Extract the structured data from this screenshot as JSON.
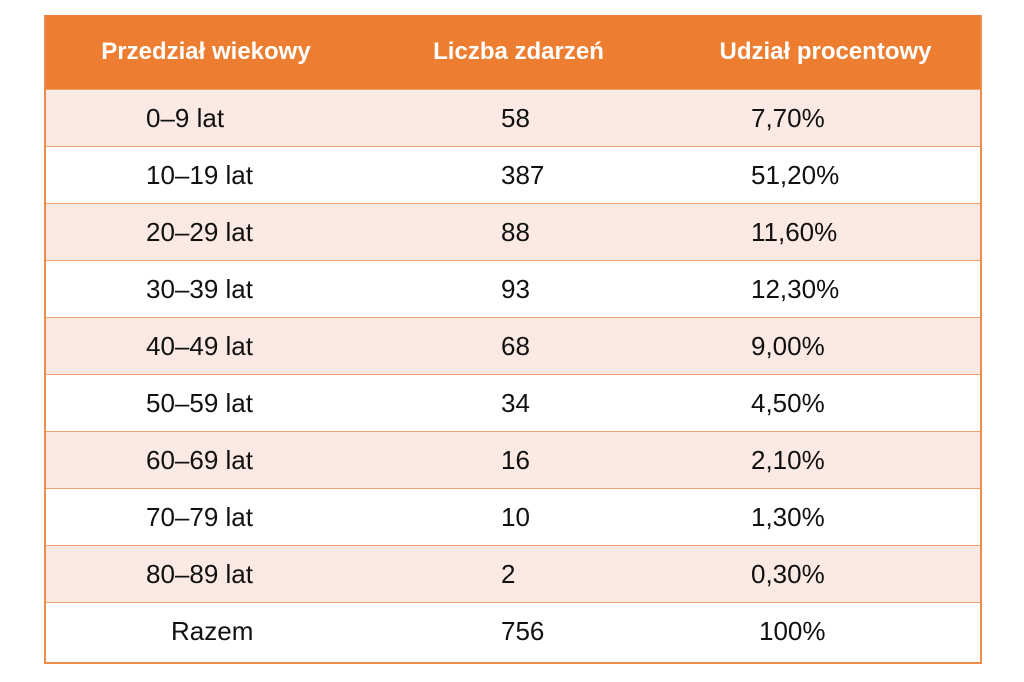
{
  "chart_data": {
    "type": "table",
    "columns": [
      "Przedział wiekowy",
      "Liczba zdarzeń",
      "Udział procentowy"
    ],
    "rows": [
      [
        "0–9 lat",
        "58",
        "7,70%"
      ],
      [
        "10–19 lat",
        "387",
        "51,20%"
      ],
      [
        "20–29 lat",
        "88",
        "11,60%"
      ],
      [
        "30–39 lat",
        "93",
        "12,30%"
      ],
      [
        "40–49 lat",
        "68",
        "9,00%"
      ],
      [
        "50–59 lat",
        "34",
        "4,50%"
      ],
      [
        "60–69 lat",
        "16",
        "2,10%"
      ],
      [
        "70–79 lat",
        "10",
        "1,30%"
      ],
      [
        "80–89 lat",
        "2",
        "0,30%"
      ],
      [
        "Razem",
        "756",
        "100%"
      ]
    ],
    "colors": {
      "header_bg": "#ed7d31",
      "header_text": "#ffffff",
      "band_bg": "#fbe9e3",
      "border": "#ef8b4a"
    }
  }
}
